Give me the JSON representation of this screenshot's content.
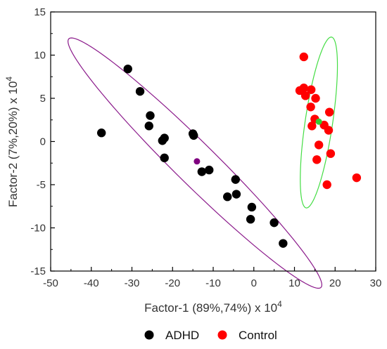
{
  "chart_data": {
    "type": "scatter",
    "xlabel": "Factor-1 (89%,74%) x 10",
    "xlabel_exp": "4",
    "ylabel": "Factor-2 (7%,20%) x 10",
    "ylabel_exp": "4",
    "xlim": [
      -50,
      30
    ],
    "ylim": [
      -15,
      15
    ],
    "xticks": [
      "-50",
      "-40",
      "-30",
      "-20",
      "-10",
      "0",
      "10",
      "20",
      "30"
    ],
    "yticks": [
      "15",
      "10",
      "5",
      "0",
      "-5",
      "-10",
      "-15"
    ],
    "grid": false,
    "legend_position": "bottom",
    "series": [
      {
        "name": "ADHD",
        "color": "#000000",
        "points": [
          [
            -37.5,
            1.0
          ],
          [
            -31.0,
            8.4
          ],
          [
            -28.0,
            5.8
          ],
          [
            -25.5,
            3.0
          ],
          [
            -25.8,
            1.8
          ],
          [
            -22.0,
            0.4
          ],
          [
            -22.5,
            0.1
          ],
          [
            -22.0,
            -1.9
          ],
          [
            -15.0,
            0.9
          ],
          [
            -14.8,
            0.7
          ],
          [
            -12.8,
            -3.5
          ],
          [
            -11.0,
            -3.3
          ],
          [
            -6.5,
            -6.4
          ],
          [
            -4.5,
            -4.4
          ],
          [
            -4.3,
            -6.1
          ],
          [
            -0.5,
            -7.6
          ],
          [
            -0.8,
            -9.0
          ],
          [
            5.0,
            -9.4
          ],
          [
            7.2,
            -11.8
          ]
        ],
        "centroid": [
          -14.0,
          -2.3
        ],
        "centroid_color": "#800080",
        "ellipse_color": "#8B1A8B"
      },
      {
        "name": "Control",
        "color": "#ff0000",
        "points": [
          [
            12.3,
            9.8
          ],
          [
            11.3,
            5.9
          ],
          [
            12.3,
            6.2
          ],
          [
            12.7,
            5.3
          ],
          [
            14.1,
            6.0
          ],
          [
            15.2,
            5.0
          ],
          [
            14.0,
            4.0
          ],
          [
            15.0,
            2.6
          ],
          [
            14.3,
            1.8
          ],
          [
            17.3,
            1.9
          ],
          [
            18.6,
            3.4
          ],
          [
            18.4,
            1.3
          ],
          [
            16.0,
            -0.4
          ],
          [
            18.9,
            -1.4
          ],
          [
            15.5,
            -2.1
          ],
          [
            18.0,
            -5.0
          ],
          [
            25.3,
            -4.2
          ]
        ],
        "centroid": [
          16.0,
          2.3
        ],
        "centroid_color": "#33cc33",
        "ellipse_color": "#44dd44"
      }
    ],
    "ellipses": [
      {
        "series": "ADHD",
        "center": [
          -14.5,
          -2.5
        ],
        "semi_major": 34.3,
        "semi_minor": 3.05,
        "angle_deg": -24.5
      },
      {
        "series": "Control",
        "center": [
          16.0,
          2.2
        ],
        "semi_major": 10.4,
        "semi_minor": 3.25,
        "angle_deg": 71.0
      }
    ]
  },
  "legend": {
    "items": [
      {
        "label": "ADHD",
        "color": "#000000"
      },
      {
        "label": "Control",
        "color": "#ff0000"
      }
    ]
  }
}
